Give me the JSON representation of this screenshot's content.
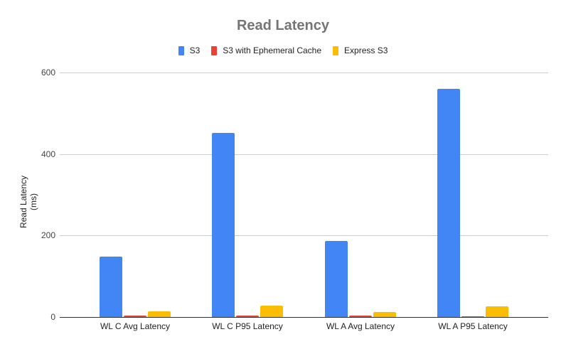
{
  "chart_data": {
    "type": "bar",
    "title": "Read Latency",
    "xlabel": "",
    "ylabel": "Read Latency (ms)",
    "ylim": [
      0,
      600
    ],
    "yticks": [
      0,
      200,
      400,
      600
    ],
    "grid": true,
    "legend_position": "top",
    "categories": [
      "WL C Avg Latency",
      "WL C P95 Latency",
      "WL A Avg Latency",
      "WL A P95 Latency"
    ],
    "series": [
      {
        "name": "S3",
        "color": "#4285f4",
        "values": [
          148,
          452,
          187,
          560
        ]
      },
      {
        "name": "S3 with Ephemeral Cache",
        "color": "#ea4335",
        "values": [
          4,
          4,
          4,
          2
        ]
      },
      {
        "name": "Express S3",
        "color": "#fbbc04",
        "values": [
          14,
          28,
          12,
          26
        ]
      }
    ]
  }
}
